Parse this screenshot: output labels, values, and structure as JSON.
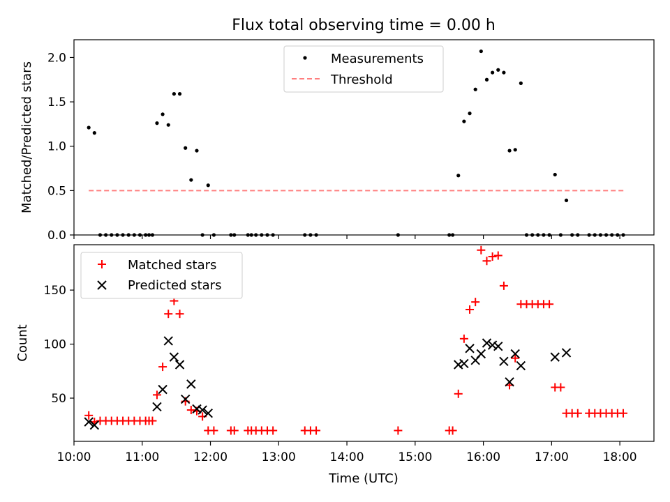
{
  "chart_data": {
    "type": "scatter",
    "title": "Flux total observing time = 0.00 h",
    "xlabel": "Time (UTC)",
    "xlim": [
      "10:00",
      "18:30"
    ],
    "xticks": [
      "10:00",
      "11:00",
      "12:00",
      "13:00",
      "14:00",
      "15:00",
      "16:00",
      "17:00",
      "18:00"
    ],
    "panels": [
      {
        "ylabel": "Matched/Predicted stars",
        "ylim": [
          0,
          2.2
        ],
        "yticks": [
          "0.0",
          "0.5",
          "1.0",
          "1.5",
          "2.0"
        ],
        "legend_position": "upper-center",
        "series": [
          {
            "name": "Measurements",
            "marker": "dot",
            "color": "#000000",
            "points": [
              [
                "10:13",
                1.21
              ],
              [
                "10:18",
                1.15
              ],
              [
                "10:23",
                0
              ],
              [
                "10:28",
                0
              ],
              [
                "10:33",
                0
              ],
              [
                "10:38",
                0
              ],
              [
                "10:43",
                0
              ],
              [
                "10:48",
                0
              ],
              [
                "10:53",
                0
              ],
              [
                "10:58",
                0
              ],
              [
                "11:03",
                0
              ],
              [
                "11:06",
                0
              ],
              [
                "11:09",
                0
              ],
              [
                "11:13",
                1.26
              ],
              [
                "11:18",
                1.36
              ],
              [
                "11:23",
                1.24
              ],
              [
                "11:28",
                1.59
              ],
              [
                "11:33",
                1.59
              ],
              [
                "11:38",
                0.98
              ],
              [
                "11:43",
                0.62
              ],
              [
                "11:48",
                0.95
              ],
              [
                "11:53",
                0
              ],
              [
                "11:58",
                0.56
              ],
              [
                "12:03",
                0
              ],
              [
                "12:18",
                0
              ],
              [
                "12:21",
                0
              ],
              [
                "12:33",
                0
              ],
              [
                "12:36",
                0
              ],
              [
                "12:40",
                0
              ],
              [
                "12:45",
                0
              ],
              [
                "12:50",
                0
              ],
              [
                "12:55",
                0
              ],
              [
                "13:23",
                0
              ],
              [
                "13:28",
                0
              ],
              [
                "13:33",
                0
              ],
              [
                "14:45",
                0
              ],
              [
                "15:30",
                0
              ],
              [
                "15:33",
                0
              ],
              [
                "15:38",
                0.67
              ],
              [
                "15:43",
                1.28
              ],
              [
                "15:48",
                1.37
              ],
              [
                "15:53",
                1.64
              ],
              [
                "15:58",
                2.07
              ],
              [
                "16:03",
                1.75
              ],
              [
                "16:08",
                1.83
              ],
              [
                "16:13",
                1.86
              ],
              [
                "16:18",
                1.83
              ],
              [
                "16:23",
                0.95
              ],
              [
                "16:28",
                0.96
              ],
              [
                "16:33",
                1.71
              ],
              [
                "16:38",
                0
              ],
              [
                "16:43",
                0
              ],
              [
                "16:48",
                0
              ],
              [
                "16:53",
                0
              ],
              [
                "16:58",
                0
              ],
              [
                "17:03",
                0.68
              ],
              [
                "17:08",
                0
              ],
              [
                "17:13",
                0.39
              ],
              [
                "17:18",
                0
              ],
              [
                "17:23",
                0
              ],
              [
                "17:33",
                0
              ],
              [
                "17:38",
                0
              ],
              [
                "17:43",
                0
              ],
              [
                "17:48",
                0
              ],
              [
                "17:53",
                0
              ],
              [
                "17:58",
                0
              ],
              [
                "18:03",
                0
              ]
            ]
          },
          {
            "name": "Threshold",
            "marker": "dashed-line",
            "color": "#ff7f7f",
            "points": [
              [
                "10:13",
                0.5
              ],
              [
                "18:04",
                0.5
              ]
            ]
          }
        ]
      },
      {
        "ylabel": "Count",
        "ylim": [
          10,
          192
        ],
        "yticks": [
          "50",
          "100",
          "150"
        ],
        "legend_position": "upper-left",
        "series": [
          {
            "name": "Matched stars",
            "marker": "plus",
            "color": "#ff0000",
            "points": [
              [
                "10:13",
                34
              ],
              [
                "10:18",
                28
              ],
              [
                "10:23",
                29
              ],
              [
                "10:28",
                29
              ],
              [
                "10:33",
                29
              ],
              [
                "10:38",
                29
              ],
              [
                "10:43",
                29
              ],
              [
                "10:48",
                29
              ],
              [
                "10:53",
                29
              ],
              [
                "10:58",
                29
              ],
              [
                "11:03",
                29
              ],
              [
                "11:06",
                29
              ],
              [
                "11:09",
                29
              ],
              [
                "11:13",
                53
              ],
              [
                "11:18",
                79
              ],
              [
                "11:23",
                128
              ],
              [
                "11:28",
                140
              ],
              [
                "11:33",
                128
              ],
              [
                "11:38",
                47
              ],
              [
                "11:43",
                39
              ],
              [
                "11:48",
                38
              ],
              [
                "11:53",
                33
              ],
              [
                "11:58",
                20
              ],
              [
                "12:03",
                20
              ],
              [
                "12:18",
                20
              ],
              [
                "12:21",
                20
              ],
              [
                "12:33",
                20
              ],
              [
                "12:36",
                20
              ],
              [
                "12:40",
                20
              ],
              [
                "12:45",
                20
              ],
              [
                "12:50",
                20
              ],
              [
                "12:55",
                20
              ],
              [
                "13:23",
                20
              ],
              [
                "13:28",
                20
              ],
              [
                "13:33",
                20
              ],
              [
                "14:45",
                20
              ],
              [
                "15:30",
                20
              ],
              [
                "15:33",
                20
              ],
              [
                "15:38",
                54
              ],
              [
                "15:43",
                105
              ],
              [
                "15:48",
                132
              ],
              [
                "15:53",
                139
              ],
              [
                "15:58",
                187
              ],
              [
                "16:03",
                177
              ],
              [
                "16:08",
                181
              ],
              [
                "16:13",
                182
              ],
              [
                "16:18",
                154
              ],
              [
                "16:23",
                62
              ],
              [
                "16:28",
                87
              ],
              [
                "16:33",
                137
              ],
              [
                "16:38",
                137
              ],
              [
                "16:43",
                137
              ],
              [
                "16:48",
                137
              ],
              [
                "16:53",
                137
              ],
              [
                "16:58",
                137
              ],
              [
                "17:03",
                60
              ],
              [
                "17:08",
                60
              ],
              [
                "17:13",
                36
              ],
              [
                "17:18",
                36
              ],
              [
                "17:23",
                36
              ],
              [
                "17:33",
                36
              ],
              [
                "17:38",
                36
              ],
              [
                "17:43",
                36
              ],
              [
                "17:48",
                36
              ],
              [
                "17:53",
                36
              ],
              [
                "17:58",
                36
              ],
              [
                "18:03",
                36
              ]
            ]
          },
          {
            "name": "Predicted stars",
            "marker": "cross",
            "color": "#000000",
            "points": [
              [
                "10:13",
                28
              ],
              [
                "10:18",
                25
              ],
              [
                "11:13",
                42
              ],
              [
                "11:18",
                58
              ],
              [
                "11:23",
                103
              ],
              [
                "11:28",
                88
              ],
              [
                "11:33",
                81
              ],
              [
                "11:38",
                49
              ],
              [
                "11:43",
                63
              ],
              [
                "11:48",
                40
              ],
              [
                "11:53",
                39
              ],
              [
                "11:58",
                36
              ],
              [
                "15:38",
                81
              ],
              [
                "15:43",
                82
              ],
              [
                "15:48",
                96
              ],
              [
                "15:53",
                85
              ],
              [
                "15:58",
                91
              ],
              [
                "16:03",
                101
              ],
              [
                "16:08",
                99
              ],
              [
                "16:13",
                98
              ],
              [
                "16:18",
                84
              ],
              [
                "16:23",
                65
              ],
              [
                "16:28",
                91
              ],
              [
                "16:33",
                80
              ],
              [
                "17:03",
                88
              ],
              [
                "17:13",
                92
              ]
            ]
          }
        ]
      }
    ]
  }
}
